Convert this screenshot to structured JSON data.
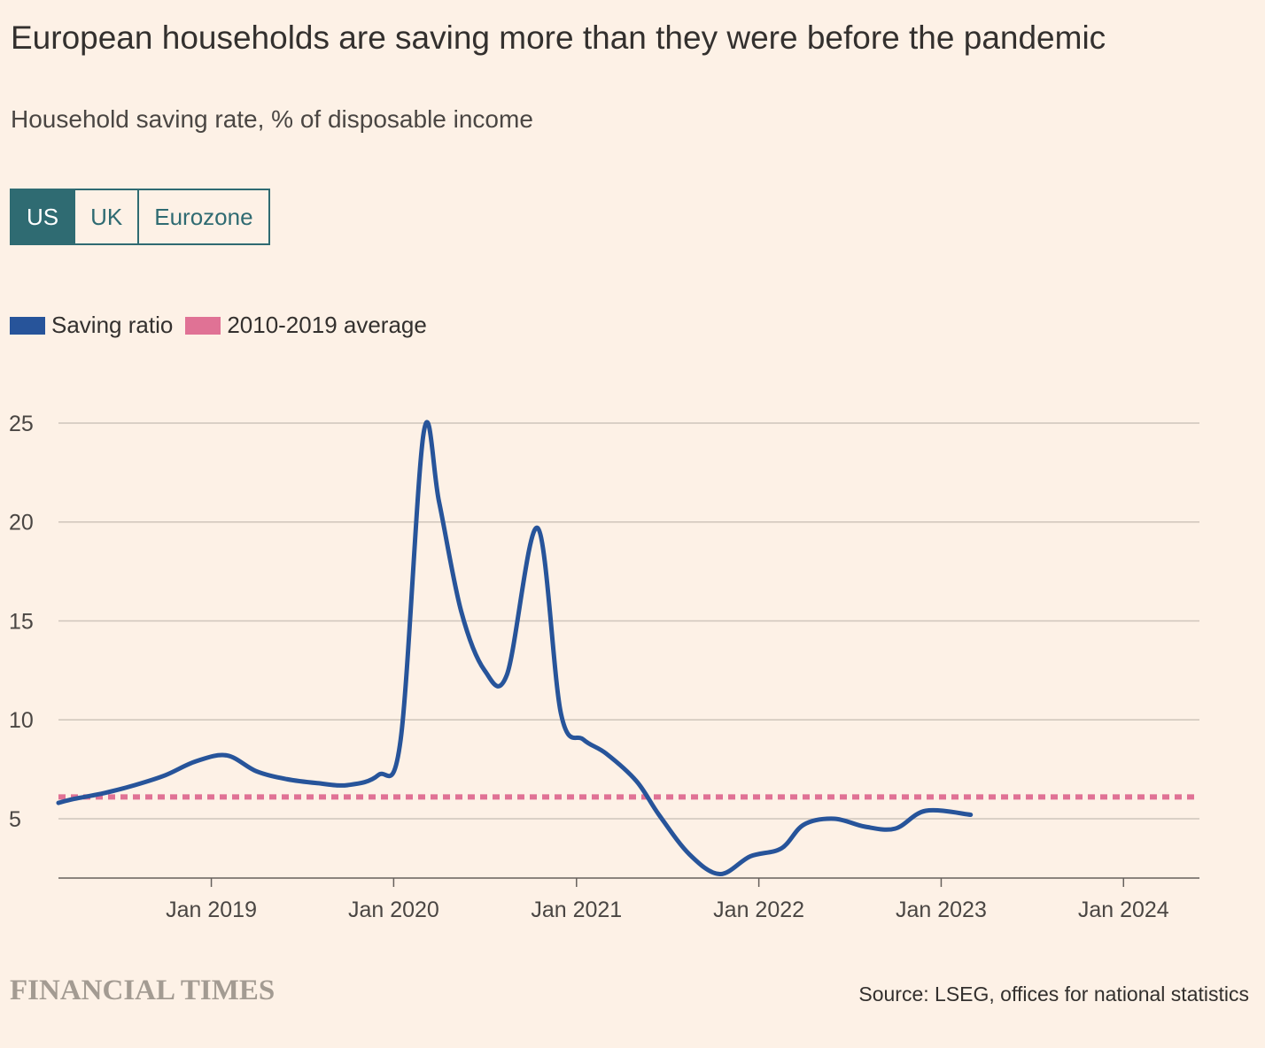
{
  "title": "European households are saving more than they were before the pandemic",
  "subtitle": "Household saving rate, % of disposable income",
  "tabs": [
    {
      "label": "US",
      "active": true
    },
    {
      "label": "UK",
      "active": false
    },
    {
      "label": "Eurozone",
      "active": false
    }
  ],
  "legend": [
    {
      "label": "Saving ratio",
      "color": "#27549a"
    },
    {
      "label": "2010-2019 average",
      "color": "#e07295"
    }
  ],
  "footer": {
    "brand": "FINANCIAL TIMES",
    "source": "Source: LSEG, offices for national statistics"
  },
  "chart_data": {
    "type": "line",
    "title": "",
    "xlabel": "",
    "ylabel": "",
    "xlim": [
      "2018-03-01",
      "2024-06-01"
    ],
    "ylim": [
      2,
      25
    ],
    "y_ticks": [
      5,
      10,
      15,
      20,
      25
    ],
    "x_ticks": [
      {
        "label": "Jan 2019",
        "date": "2019-01-01"
      },
      {
        "label": "Jan 2020",
        "date": "2020-01-01"
      },
      {
        "label": "Jan 2021",
        "date": "2021-01-01"
      },
      {
        "label": "Jan 2022",
        "date": "2022-01-01"
      },
      {
        "label": "Jan 2023",
        "date": "2023-01-01"
      },
      {
        "label": "Jan 2024",
        "date": "2024-01-01"
      }
    ],
    "grid": true,
    "series": [
      {
        "name": "Saving ratio",
        "color": "#27549a",
        "points": [
          [
            "2018-03-01",
            5.8
          ],
          [
            "2018-04-01",
            6.0
          ],
          [
            "2018-06-01",
            6.3
          ],
          [
            "2018-08-01",
            6.7
          ],
          [
            "2018-10-01",
            7.2
          ],
          [
            "2018-12-01",
            7.9
          ],
          [
            "2019-02-01",
            8.2
          ],
          [
            "2019-04-01",
            7.4
          ],
          [
            "2019-06-01",
            7.0
          ],
          [
            "2019-08-01",
            6.8
          ],
          [
            "2019-10-01",
            6.7
          ],
          [
            "2019-12-01",
            7.2
          ],
          [
            "2020-01-15",
            9.0
          ],
          [
            "2020-03-01",
            24.5
          ],
          [
            "2020-04-01",
            21.0
          ],
          [
            "2020-05-15",
            15.5
          ],
          [
            "2020-07-01",
            12.5
          ],
          [
            "2020-08-15",
            12.3
          ],
          [
            "2020-10-15",
            19.7
          ],
          [
            "2020-12-01",
            10.3
          ],
          [
            "2021-01-15",
            9.0
          ],
          [
            "2021-03-01",
            8.3
          ],
          [
            "2021-05-01",
            6.9
          ],
          [
            "2021-06-15",
            5.2
          ],
          [
            "2021-08-15",
            3.2
          ],
          [
            "2021-10-15",
            2.2
          ],
          [
            "2021-12-15",
            3.1
          ],
          [
            "2022-02-15",
            3.5
          ],
          [
            "2022-04-01",
            4.7
          ],
          [
            "2022-06-01",
            5.0
          ],
          [
            "2022-08-01",
            4.6
          ],
          [
            "2022-10-01",
            4.5
          ],
          [
            "2022-12-01",
            5.4
          ],
          [
            "2023-03-01",
            5.2
          ]
        ]
      },
      {
        "name": "2010-2019 average",
        "color": "#e07295",
        "style": "dotted",
        "points": [
          [
            "2018-03-01",
            6.1
          ],
          [
            "2024-06-01",
            6.1
          ]
        ]
      }
    ]
  }
}
